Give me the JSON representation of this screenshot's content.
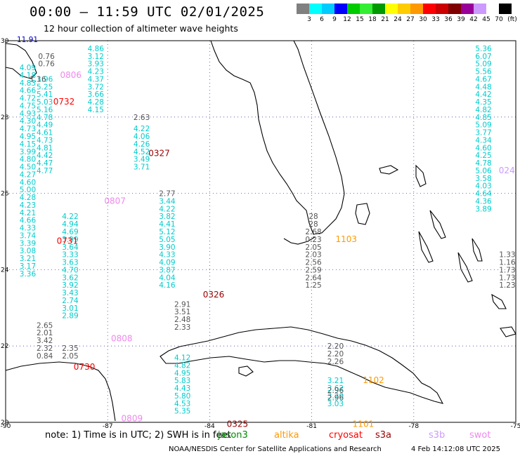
{
  "title": "00:00 – 11:59 UTC 02/01/2025",
  "subtitle": "12 hour collection of altimeter wave heights",
  "colorbar": {
    "unit": "(ft)",
    "labels": [
      "3",
      "6",
      "9",
      "12",
      "15",
      "18",
      "21",
      "24",
      "27",
      "30",
      "33",
      "36",
      "39",
      "42",
      "45",
      "70"
    ],
    "colors": [
      "#808080",
      "#00ffff",
      "#00ccff",
      "#0000ff",
      "#00cc00",
      "#33ee33",
      "#009900",
      "#ffff00",
      "#ffcc00",
      "#ff9900",
      "#ff0000",
      "#cc0000",
      "#800000",
      "#990099",
      "#cc99ff",
      "#ffffff",
      "#000000"
    ]
  },
  "axes": {
    "lon_labels": [
      "-90",
      "-87",
      "-84",
      "-81",
      "-78",
      "-75"
    ],
    "lat_labels": [
      "30",
      "28",
      "26",
      "24",
      "22",
      "20"
    ]
  },
  "colors": {
    "wave_cyan": "#00cccc",
    "wave_gray": "#555555",
    "wave_blue": "#0000cc",
    "coast": "#000000",
    "grid": "#4444aa"
  },
  "passes": [
    {
      "label": "0806",
      "color": "#ee88ee",
      "lon": -88.4,
      "lat": 29.1
    },
    {
      "label": "0732",
      "color": "#ff0000",
      "lon": -88.6,
      "lat": 28.4
    },
    {
      "label": "0327",
      "color": "#990000",
      "lon": -85.8,
      "lat": 27.05
    },
    {
      "label": "0807",
      "color": "#ee88ee",
      "lon": -87.1,
      "lat": 25.8
    },
    {
      "label": "0731",
      "color": "#ff0000",
      "lon": -88.5,
      "lat": 24.75
    },
    {
      "label": "0326",
      "color": "#990000",
      "lon": -84.2,
      "lat": 23.35
    },
    {
      "label": "0808",
      "color": "#ee88ee",
      "lon": -86.9,
      "lat": 22.2
    },
    {
      "label": "0730",
      "color": "#ff0000",
      "lon": -88.0,
      "lat": 21.45
    },
    {
      "label": "0809",
      "color": "#ee88ee",
      "lon": -86.6,
      "lat": 20.1
    },
    {
      "label": "0325",
      "color": "#990000",
      "lon": -83.5,
      "lat": 19.95
    },
    {
      "label": "1103",
      "color": "#ff9900",
      "lon": -80.3,
      "lat": 24.8
    },
    {
      "label": "1102",
      "color": "#ff9900",
      "lon": -79.5,
      "lat": 21.1
    },
    {
      "label": "1101",
      "color": "#ff9900",
      "lon": -79.8,
      "lat": 19.95
    },
    {
      "label": "024",
      "color": "#cc99ff",
      "lon": -75.5,
      "lat": 26.6
    }
  ],
  "wave_columns": [
    {
      "color": "#00cccc",
      "lon": -89.35,
      "lat_start": 29.3,
      "lat_step": 0.2,
      "values": [
        "4.09",
        "4.18",
        "4.83",
        "4.66",
        "4.72",
        "4.75",
        "4.93",
        "4.30",
        "4.73",
        "4.95",
        "4.15",
        "3.99",
        "4.80",
        "4.50",
        "4.27",
        "4.60",
        "5.00",
        "4.28",
        "4.23",
        "4.21",
        "4.66",
        "4.33",
        "3.74",
        "3.39",
        "3.08",
        "3.21",
        "3.17",
        "3.36"
      ]
    },
    {
      "color": "#00cccc",
      "lon": -88.85,
      "lat_start": 29.0,
      "lat_step": 0.2,
      "values": [
        "3.96",
        "5.25",
        "5.41",
        "5.03",
        "5.16",
        "4.78",
        "4.49",
        "4.61",
        "4.73",
        "4.81",
        "4.42",
        "4.47",
        "4.77"
      ]
    },
    {
      "color": "#00cccc",
      "lon": -88.1,
      "lat_start": 25.4,
      "lat_step": 0.2,
      "values": [
        "4.22",
        "4.94",
        "4.69",
        "3.99",
        "3.64",
        "3.33",
        "3.63",
        "4.70",
        "3.62",
        "3.92",
        "3.43",
        "2.74",
        "3.01",
        "2.89"
      ]
    },
    {
      "color": "#00cccc",
      "lon": -87.35,
      "lat_start": 29.8,
      "lat_step": 0.2,
      "values": [
        "4.86",
        "3.12",
        "3.93",
        "4.23",
        "4.37",
        "3.72",
        "3.66",
        "4.28",
        "4.15"
      ]
    },
    {
      "color": "#00cccc",
      "lon": -86.0,
      "lat_start": 27.7,
      "lat_step": 0.2,
      "values": [
        "4.22",
        "4.06",
        "4.26",
        "4.52",
        "3.49",
        "3.71"
      ]
    },
    {
      "color": "#00cccc",
      "lon": -85.25,
      "lat_start": 25.8,
      "lat_step": 0.2,
      "values": [
        "3.44",
        "4.22",
        "3.82",
        "4.41",
        "5.12",
        "5.05",
        "3.90",
        "4.33",
        "4.09",
        "3.87",
        "4.04",
        "4.16"
      ]
    },
    {
      "color": "#00cccc",
      "lon": -84.8,
      "lat_start": 21.7,
      "lat_step": 0.2,
      "values": [
        "4.12",
        "4.82",
        "4.95",
        "5.83",
        "4.43",
        "5.80",
        "4.53",
        "5.35"
      ]
    },
    {
      "color": "#00cccc",
      "lon": -75.95,
      "lat_start": 29.8,
      "lat_step": 0.2,
      "values": [
        "5.36",
        "6.07",
        "5.09",
        "5.56",
        "4.67",
        "4.48",
        "4.42",
        "4.35",
        "4.82",
        "4.85",
        "5.09",
        "3.77",
        "4.34",
        "4.60",
        "4.25",
        "4.78",
        "5.06",
        "3.58",
        "4.03",
        "4.64",
        "4.36",
        "3.89"
      ]
    },
    {
      "color": "#00cccc",
      "lon": -80.3,
      "lat_start": 21.1,
      "lat_step": -0.2,
      "values": [
        "3.21"
      ]
    },
    {
      "color": "#00cccc",
      "lon": -80.3,
      "lat_start": 20.5,
      "lat_step": -0.2,
      "values": [
        "3.03",
        "3.20",
        "3.62"
      ]
    },
    {
      "color": "#555555",
      "lon": -86.0,
      "lat_start": 28.0,
      "lat_step": 0.2,
      "values": [
        "2.63"
      ]
    },
    {
      "color": "#555555",
      "lon": -85.25,
      "lat_start": 26.0,
      "lat_step": 0.2,
      "values": [
        "2.77"
      ]
    },
    {
      "color": "#555555",
      "lon": -84.8,
      "lat_start": 23.1,
      "lat_step": 0.2,
      "values": [
        "2.91",
        "3.51",
        "2.48",
        "2.33"
      ]
    },
    {
      "color": "#555555",
      "lon": -88.85,
      "lat_start": 22.55,
      "lat_step": 0.2,
      "values": [
        "2.65",
        "2.01",
        "3.42",
        "2.32",
        "0.84"
      ]
    },
    {
      "color": "#555555",
      "lon": -88.1,
      "lat_start": 21.95,
      "lat_step": 0.2,
      "values": [
        "2.35",
        "2.05"
      ]
    },
    {
      "color": "#555555",
      "lon": -88.8,
      "lat_start": 29.6,
      "lat_step": 0.2,
      "values": [
        "0.76",
        "0.76"
      ]
    },
    {
      "color": "#555555",
      "lon": -89.05,
      "lat_start": 29.0,
      "lat_step": 0.2,
      "values": [
        "1.16"
      ]
    },
    {
      "color": "#555555",
      "lon": -80.95,
      "lat_start": 25.4,
      "lat_step": 0.2,
      "values": [
        "28",
        "28",
        "2.68",
        "0.23",
        "2.05",
        "2.03",
        "2.56",
        "2.59",
        "2.64",
        "1.25"
      ]
    },
    {
      "color": "#555555",
      "lon": -80.3,
      "lat_start": 22.0,
      "lat_step": 0.2,
      "values": [
        "2.20",
        "2.20",
        "2.26"
      ]
    },
    {
      "color": "#555555",
      "lon": -80.3,
      "lat_start": 20.85,
      "lat_step": 0.2,
      "values": [
        "2.96",
        "2.96"
      ]
    },
    {
      "color": "#555555",
      "lon": -75.25,
      "lat_start": 24.4,
      "lat_step": 0.2,
      "values": [
        "1.33",
        "1.16",
        "1.73",
        "1.73",
        "1.23"
      ]
    }
  ],
  "corner_value": {
    "label": "11.91",
    "color": "#0000cc"
  },
  "note": "note: 1) Time is in UTC; 2) SWH is in feet",
  "missions": [
    {
      "name": "jason3",
      "color": "#008800"
    },
    {
      "name": "altika",
      "color": "#ff9900"
    },
    {
      "name": "cryosat",
      "color": "#ff0000"
    },
    {
      "name": "s3a",
      "color": "#990000"
    },
    {
      "name": "s3b",
      "color": "#cc99ff"
    },
    {
      "name": "swot",
      "color": "#ee88ee"
    }
  ],
  "footer": {
    "credit": "NOAA/NESDIS Center for Satellite Applications and Research",
    "timestamp": "4 Feb 14:12:08 UTC 2025"
  }
}
